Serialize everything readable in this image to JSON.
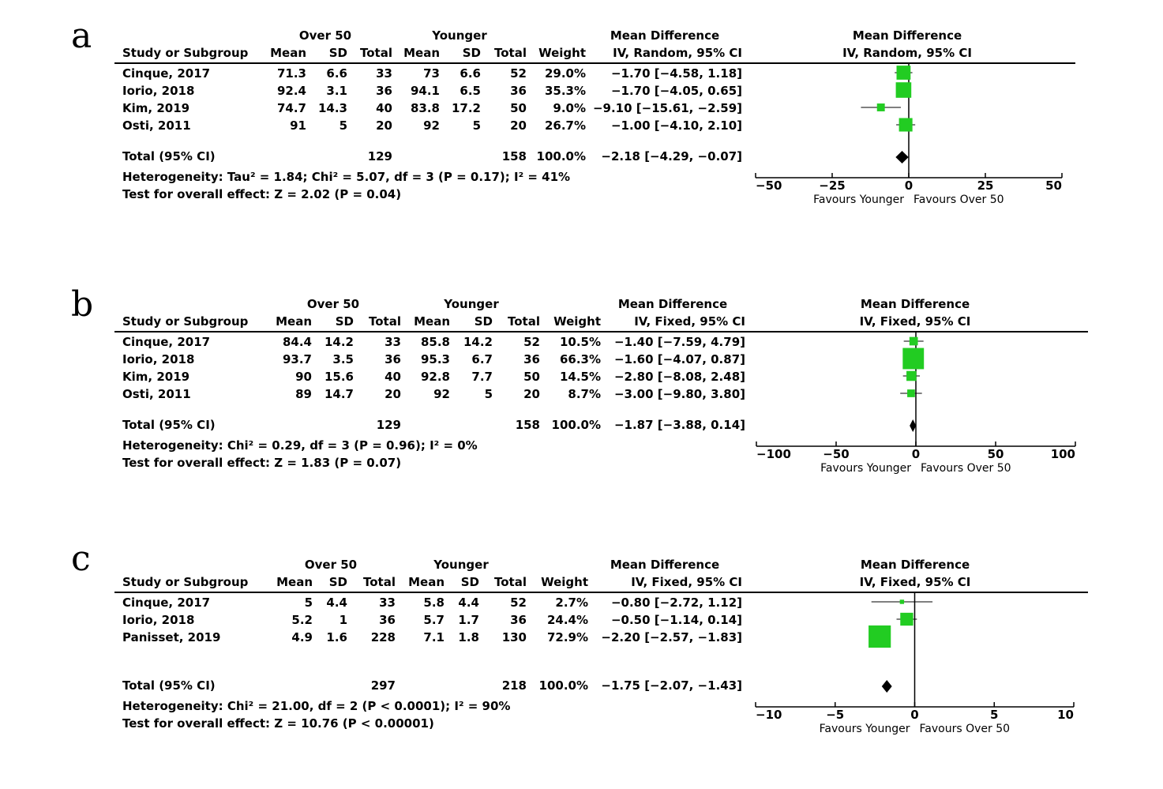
{
  "chart_data": [
    {
      "type": "forest",
      "panel_label": "a",
      "group1": "Over 50",
      "group2": "Younger",
      "columns": {
        "study": "Study or Subgroup",
        "mean": "Mean",
        "sd": "SD",
        "total": "Total",
        "weight": "Weight"
      },
      "md_header": "Mean Difference",
      "method": "IV, Random, 95% CI",
      "studies": [
        {
          "study": "Cinque, 2017",
          "g1": [
            "71.3",
            "6.6",
            "33"
          ],
          "g2": [
            "73",
            "6.6",
            "52"
          ],
          "weight": "29.0%",
          "ci_text": "−1.70 [−4.58, 1.18]",
          "md": -1.7,
          "lo": -4.58,
          "hi": 1.18,
          "w": 29.0
        },
        {
          "study": "Iorio, 2018",
          "g1": [
            "92.4",
            "3.1",
            "36"
          ],
          "g2": [
            "94.1",
            "6.5",
            "36"
          ],
          "weight": "35.3%",
          "ci_text": "−1.70 [−4.05, 0.65]",
          "md": -1.7,
          "lo": -4.05,
          "hi": 0.65,
          "w": 35.3
        },
        {
          "study": "Kim, 2019",
          "g1": [
            "74.7",
            "14.3",
            "40"
          ],
          "g2": [
            "83.8",
            "17.2",
            "50"
          ],
          "weight": "9.0%",
          "ci_text": "−9.10 [−15.61, −2.59]",
          "md": -9.1,
          "lo": -15.61,
          "hi": -2.59,
          "w": 9.0
        },
        {
          "study": "Osti, 2011",
          "g1": [
            "91",
            "5",
            "20"
          ],
          "g2": [
            "92",
            "5",
            "20"
          ],
          "weight": "26.7%",
          "ci_text": "−1.00 [−4.10, 2.10]",
          "md": -1.0,
          "lo": -4.1,
          "hi": 2.1,
          "w": 26.7
        }
      ],
      "total": {
        "label": "Total (95% CI)",
        "n1": "129",
        "n2": "158",
        "weight": "100.0%",
        "ci_text": "−2.18 [−4.29, −0.07]",
        "md": -2.18,
        "lo": -4.29,
        "hi": -0.07
      },
      "heterogeneity": "Heterogeneity: Tau² = 1.84; Chi² = 5.07, df = 3 (P = 0.17); I² = 41%",
      "overall": "Test for overall effect: Z = 2.02 (P = 0.04)",
      "xlim": [
        -50,
        50
      ],
      "ticks": [
        {
          "v": -50,
          "t": "−50"
        },
        {
          "v": -25,
          "t": "−25"
        },
        {
          "v": 0,
          "t": "0"
        },
        {
          "v": 25,
          "t": "25"
        },
        {
          "v": 50,
          "t": "50"
        }
      ],
      "favours_left": "Favours Younger",
      "favours_right": "Favours Over 50",
      "marker_color": "#22cc22"
    },
    {
      "type": "forest",
      "panel_label": "b",
      "group1": "Over 50",
      "group2": "Younger",
      "columns": {
        "study": "Study or Subgroup",
        "mean": "Mean",
        "sd": "SD",
        "total": "Total",
        "weight": "Weight"
      },
      "md_header": "Mean Difference",
      "method": "IV, Fixed, 95% CI",
      "studies": [
        {
          "study": "Cinque, 2017",
          "g1": [
            "84.4",
            "14.2",
            "33"
          ],
          "g2": [
            "85.8",
            "14.2",
            "52"
          ],
          "weight": "10.5%",
          "ci_text": "−1.40 [−7.59, 4.79]",
          "md": -1.4,
          "lo": -7.59,
          "hi": 4.79,
          "w": 10.5
        },
        {
          "study": "Iorio, 2018",
          "g1": [
            "93.7",
            "3.5",
            "36"
          ],
          "g2": [
            "95.3",
            "6.7",
            "36"
          ],
          "weight": "66.3%",
          "ci_text": "−1.60 [−4.07, 0.87]",
          "md": -1.6,
          "lo": -4.07,
          "hi": 0.87,
          "w": 66.3
        },
        {
          "study": "Kim, 2019",
          "g1": [
            "90",
            "15.6",
            "40"
          ],
          "g2": [
            "92.8",
            "7.7",
            "50"
          ],
          "weight": "14.5%",
          "ci_text": "−2.80 [−8.08, 2.48]",
          "md": -2.8,
          "lo": -8.08,
          "hi": 2.48,
          "w": 14.5
        },
        {
          "study": "Osti, 2011",
          "g1": [
            "89",
            "14.7",
            "20"
          ],
          "g2": [
            "92",
            "5",
            "20"
          ],
          "weight": "8.7%",
          "ci_text": "−3.00 [−9.80, 3.80]",
          "md": -3.0,
          "lo": -9.8,
          "hi": 3.8,
          "w": 8.7
        }
      ],
      "total": {
        "label": "Total (95% CI)",
        "n1": "129",
        "n2": "158",
        "weight": "100.0%",
        "ci_text": "−1.87 [−3.88, 0.14]",
        "md": -1.87,
        "lo": -3.88,
        "hi": 0.14
      },
      "heterogeneity": "Heterogeneity: Chi² = 0.29, df = 3 (P = 0.96); I² = 0%",
      "overall": "Test for overall effect: Z = 1.83 (P = 0.07)",
      "xlim": [
        -100,
        100
      ],
      "ticks": [
        {
          "v": -100,
          "t": "−100"
        },
        {
          "v": -50,
          "t": "−50"
        },
        {
          "v": 0,
          "t": "0"
        },
        {
          "v": 50,
          "t": "50"
        },
        {
          "v": 100,
          "t": "100"
        }
      ],
      "favours_left": "Favours Younger",
      "favours_right": "Favours Over 50",
      "marker_color": "#22cc22"
    },
    {
      "type": "forest",
      "panel_label": "c",
      "group1": "Over 50",
      "group2": "Younger",
      "columns": {
        "study": "Study or Subgroup",
        "mean": "Mean",
        "sd": "SD",
        "total": "Total",
        "weight": "Weight"
      },
      "md_header": "Mean Difference",
      "method": "IV, Fixed, 95% CI",
      "studies": [
        {
          "study": "Cinque, 2017",
          "g1": [
            "5",
            "4.4",
            "33"
          ],
          "g2": [
            "5.8",
            "4.4",
            "52"
          ],
          "weight": "2.7%",
          "ci_text": "−0.80 [−2.72, 1.12]",
          "md": -0.8,
          "lo": -2.72,
          "hi": 1.12,
          "w": 2.7
        },
        {
          "study": "Iorio, 2018",
          "g1": [
            "5.2",
            "1",
            "36"
          ],
          "g2": [
            "5.7",
            "1.7",
            "36"
          ],
          "weight": "24.4%",
          "ci_text": "−0.50 [−1.14, 0.14]",
          "md": -0.5,
          "lo": -1.14,
          "hi": 0.14,
          "w": 24.4
        },
        {
          "study": "Panisset, 2019",
          "g1": [
            "4.9",
            "1.6",
            "228"
          ],
          "g2": [
            "7.1",
            "1.8",
            "130"
          ],
          "weight": "72.9%",
          "ci_text": "−2.20 [−2.57, −1.83]",
          "md": -2.2,
          "lo": -2.57,
          "hi": -1.83,
          "w": 72.9
        }
      ],
      "total": {
        "label": "Total (95% CI)",
        "n1": "297",
        "n2": "218",
        "weight": "100.0%",
        "ci_text": "−1.75 [−2.07, −1.43]",
        "md": -1.75,
        "lo": -2.07,
        "hi": -1.43
      },
      "heterogeneity": "Heterogeneity: Chi² = 21.00, df = 2 (P < 0.0001); I² = 90%",
      "overall": "Test for overall effect: Z = 10.76 (P < 0.00001)",
      "xlim": [
        -10,
        10
      ],
      "ticks": [
        {
          "v": -10,
          "t": "−10"
        },
        {
          "v": -5,
          "t": "−5"
        },
        {
          "v": 0,
          "t": "0"
        },
        {
          "v": 5,
          "t": "5"
        },
        {
          "v": 10,
          "t": "10"
        }
      ],
      "favours_left": "Favours Younger",
      "favours_right": "Favours Over 50",
      "marker_color": "#22cc22"
    }
  ]
}
